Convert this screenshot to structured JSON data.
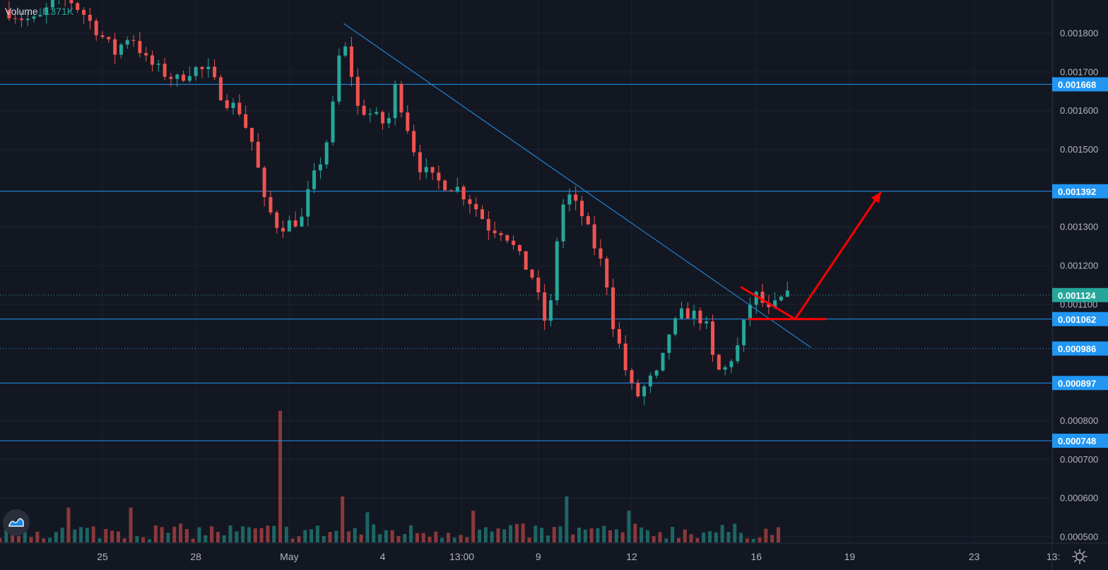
{
  "volume_legend": {
    "label": "Volume",
    "value": "8.371K"
  },
  "colors": {
    "background": "#131722",
    "grid": "#1f2330",
    "up": "#26a69a",
    "down": "#ef5350",
    "level": "#2196f3",
    "price": "#26a69a",
    "annotation": "#ff0000",
    "label_text": "#ffffff",
    "axis_text": "#b2b5be"
  },
  "icons": {
    "logo": "tradingview-logo-icon",
    "settings": "gear-icon"
  },
  "chart_data": {
    "type": "candlestick",
    "title": "",
    "ylim": [
      0.00049,
      0.00191
    ],
    "y_ticks": [
      "0.001800",
      "0.001700",
      "0.001600",
      "0.001500",
      "0.001300",
      "0.001200",
      "0.001100",
      "0.000800",
      "0.000700",
      "0.000600",
      "0.000500"
    ],
    "x_ticks": [
      {
        "label": "25",
        "date": "2020-04-25"
      },
      {
        "label": "28",
        "date": "2020-04-28"
      },
      {
        "label": "May",
        "date": "2020-05-01"
      },
      {
        "label": "4",
        "date": "2020-05-04"
      },
      {
        "label": "13:00",
        "date": "2020-05-06T13:00"
      },
      {
        "label": "9",
        "date": "2020-05-09"
      },
      {
        "label": "12",
        "date": "2020-05-12"
      },
      {
        "label": "16",
        "date": "2020-05-16"
      },
      {
        "label": "19",
        "date": "2020-05-19"
      },
      {
        "label": "23",
        "date": "2020-05-23"
      },
      {
        "label": "13:",
        "date": "2020-05-25T13:00"
      }
    ],
    "horizontal_levels": [
      {
        "price": 0.001668,
        "label": "0.001668",
        "style": "solid"
      },
      {
        "price": 0.001392,
        "label": "0.001392",
        "style": "solid"
      },
      {
        "price": 0.001062,
        "label": "0.001062",
        "style": "solid"
      },
      {
        "price": 0.000986,
        "label": "0.000986",
        "style": "dotted"
      },
      {
        "price": 0.000897,
        "label": "0.000897",
        "style": "solid"
      },
      {
        "price": 0.000748,
        "label": "0.000748",
        "style": "solid"
      }
    ],
    "last_price": {
      "price": 0.001124,
      "label": "0.001124"
    },
    "trendline": {
      "from": {
        "date": "2020-05-02T18:00",
        "price": 0.001825
      },
      "to": {
        "date": "2020-05-17T18:00",
        "price": 0.000989
      }
    },
    "price_path": [
      [
        "2020-04-22T00:00",
        0.00186
      ],
      [
        "2020-04-22T12:00",
        0.00184
      ],
      [
        "2020-04-23T00:00",
        0.00183
      ],
      [
        "2020-04-23T12:00",
        0.00188
      ],
      [
        "2020-04-24T00:00",
        0.00189
      ],
      [
        "2020-04-24T12:00",
        0.00185
      ],
      [
        "2020-04-25T00:00",
        0.0018
      ],
      [
        "2020-04-25T12:00",
        0.00175
      ],
      [
        "2020-04-26T00:00",
        0.0018
      ],
      [
        "2020-04-26T12:00",
        0.00173
      ],
      [
        "2020-04-27T00:00",
        0.0017
      ],
      [
        "2020-04-27T12:00",
        0.00168
      ],
      [
        "2020-04-28T00:00",
        0.00171
      ],
      [
        "2020-04-28T12:00",
        0.0017
      ],
      [
        "2020-04-29T00:00",
        0.00163
      ],
      [
        "2020-04-29T12:00",
        0.0016
      ],
      [
        "2020-04-30T00:00",
        0.0015
      ],
      [
        "2020-04-30T06:00",
        0.00137
      ],
      [
        "2020-04-30T18:00",
        0.0013
      ],
      [
        "2020-05-01T12:00",
        0.00132
      ],
      [
        "2020-05-01T18:00",
        0.0014
      ],
      [
        "2020-05-02T06:00",
        0.0015
      ],
      [
        "2020-05-02T12:00",
        0.00161
      ],
      [
        "2020-05-02T18:00",
        0.00177
      ],
      [
        "2020-05-03T00:00",
        0.00175
      ],
      [
        "2020-05-03T06:00",
        0.00161
      ],
      [
        "2020-05-03T18:00",
        0.00159
      ],
      [
        "2020-05-04T06:00",
        0.00156
      ],
      [
        "2020-05-04T12:00",
        0.00166
      ],
      [
        "2020-05-04T18:00",
        0.0016
      ],
      [
        "2020-05-05T06:00",
        0.00146
      ],
      [
        "2020-05-05T18:00",
        0.00142
      ],
      [
        "2020-05-06T12:00",
        0.0014
      ],
      [
        "2020-05-07T00:00",
        0.00136
      ],
      [
        "2020-05-07T12:00",
        0.0013
      ],
      [
        "2020-05-08T00:00",
        0.00129
      ],
      [
        "2020-05-08T12:00",
        0.00122
      ],
      [
        "2020-05-09T00:00",
        0.00116
      ],
      [
        "2020-05-09T06:00",
        0.00105
      ],
      [
        "2020-05-09T12:00",
        0.0011
      ],
      [
        "2020-05-09T18:00",
        0.00131
      ],
      [
        "2020-05-10T00:00",
        0.00139
      ],
      [
        "2020-05-10T12:00",
        0.00133
      ],
      [
        "2020-05-10T18:00",
        0.00128
      ],
      [
        "2020-05-11T06:00",
        0.00118
      ],
      [
        "2020-05-11T12:00",
        0.00105
      ],
      [
        "2020-05-11T18:00",
        0.00098
      ],
      [
        "2020-05-12T00:00",
        0.0009
      ],
      [
        "2020-05-12T06:00",
        0.00086
      ],
      [
        "2020-05-12T18:00",
        0.00091
      ],
      [
        "2020-05-13T00:00",
        0.00092
      ],
      [
        "2020-05-13T06:00",
        0.00102
      ],
      [
        "2020-05-13T18:00",
        0.00108
      ],
      [
        "2020-05-14T06:00",
        0.00107
      ],
      [
        "2020-05-14T12:00",
        0.00104
      ],
      [
        "2020-05-14T18:00",
        0.00094
      ],
      [
        "2020-05-15T00:00",
        0.00092
      ],
      [
        "2020-05-15T12:00",
        0.00099
      ],
      [
        "2020-05-15T18:00",
        0.00106
      ],
      [
        "2020-05-16T00:00",
        0.00113
      ],
      [
        "2020-05-16T06:00",
        0.00111
      ],
      [
        "2020-05-16T12:00",
        0.00108
      ],
      [
        "2020-05-16T18:00",
        0.0011
      ],
      [
        "2020-05-17T00:00",
        0.00112
      ]
    ],
    "volume": {
      "max": 8.9,
      "spike": {
        "date": "2020-04-30T18:00",
        "value": 8.3
      },
      "bars": [
        [
          "2020-04-24T00:00",
          2.2
        ],
        [
          "2020-04-26T00:00",
          2.2
        ],
        [
          "2020-05-02T18:00",
          2.9
        ],
        [
          "2020-05-03T12:00",
          1.9
        ],
        [
          "2020-05-07T00:00",
          2.0
        ],
        [
          "2020-05-09T21:00",
          2.9
        ],
        [
          "2020-05-12T00:00",
          2.0
        ]
      ],
      "typical_range": [
        0.2,
        1.2
      ]
    },
    "annotations": {
      "arrow": {
        "from": {
          "date": "2020-05-17T06:00",
          "price": 0.001062
        },
        "to": {
          "date": "2020-05-20T00:00",
          "price": 0.00139
        }
      },
      "flag_top": {
        "from": {
          "date": "2020-05-15T12:00",
          "price": 0.001145
        },
        "to": {
          "date": "2020-05-17T06:00",
          "price": 0.001062
        }
      },
      "flag_base": {
        "from": {
          "date": "2020-05-15T18:00",
          "price": 0.001062
        },
        "to": {
          "date": "2020-05-18T06:00",
          "price": 0.001062
        }
      }
    }
  }
}
